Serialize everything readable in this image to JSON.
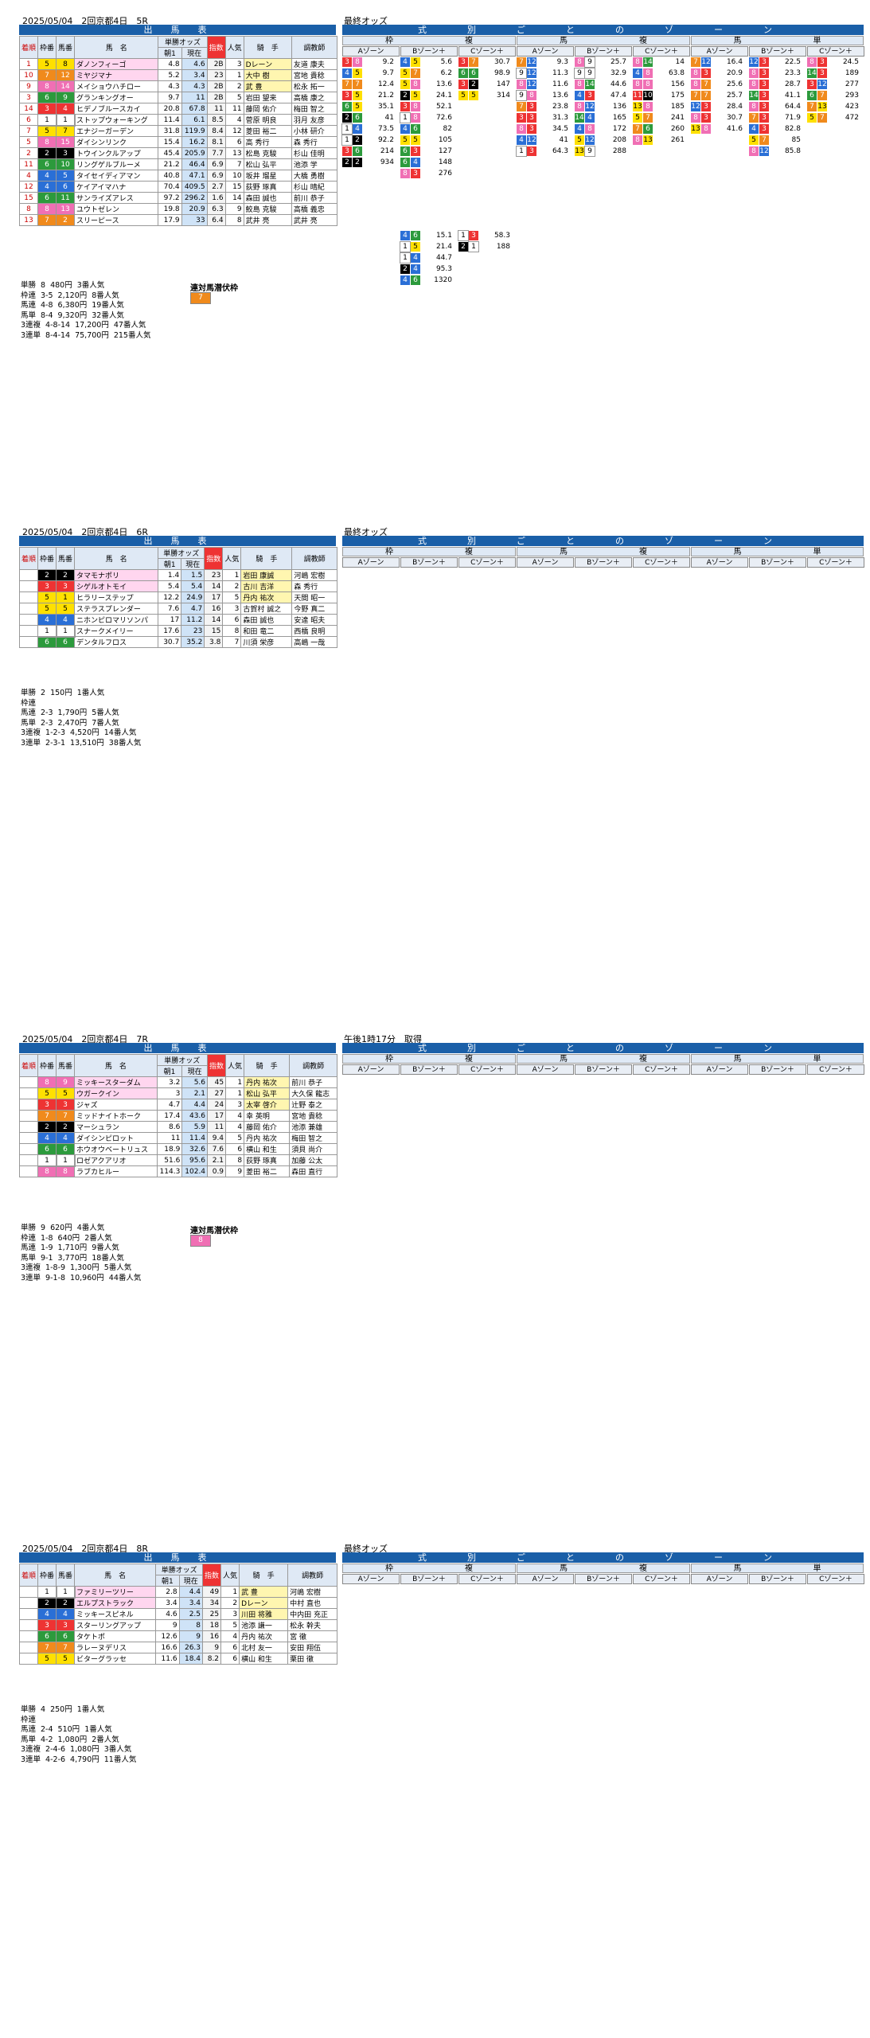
{
  "races": [
    {
      "date": "2025/05/04",
      "place": "2回京都4日",
      "race": "5R",
      "table_title": "出　馬　表",
      "odds_title": "最終オッズ",
      "zone_title": "式　別　ご　と　の　ゾ　ー　ン",
      "col_headers": [
        "着順",
        "枠番",
        "馬番",
        "馬　名",
        "単勝オッズ",
        "朝1",
        "現在",
        "人気",
        "騎　手",
        "調教師"
      ],
      "entries": [
        [
          "1",
          "5",
          "8",
          "ダノンフィーゴ",
          "4.8",
          "4.6",
          "2B",
          "3",
          "Dレーン",
          "友道 康夫"
        ],
        [
          "10",
          "7",
          "12",
          "ミヤジマナ",
          "5.2",
          "3.4",
          "23",
          "1",
          "大中 樹",
          "宮地 貴稔"
        ],
        [
          "9",
          "8",
          "14",
          "メイショウハチロー",
          "4.3",
          "4.3",
          "2B",
          "2",
          "武 豊",
          "松永 拓一"
        ],
        [
          "3",
          "6",
          "9",
          "グランキングオー",
          "9.7",
          "11",
          "2B",
          "5",
          "岩田 望来",
          "高橋 康之"
        ],
        [
          "14",
          "3",
          "4",
          "ヒデノブルースカイ",
          "20.8",
          "67.8",
          "11",
          "11",
          "藤岡 佑介",
          "梅田 智之"
        ],
        [
          "6",
          "1",
          "1",
          "ストップウォーキング",
          "11.4",
          "6.1",
          "8.5",
          "4",
          "菅原 明良",
          "羽月 友彦"
        ],
        [
          "7",
          "5",
          "7",
          "エナジーガーデン",
          "31.8",
          "119.9",
          "8.4",
          "12",
          "菱田 裕二",
          "小林 研介"
        ],
        [
          "5",
          "8",
          "15",
          "ダイシンリンク",
          "15.4",
          "16.2",
          "8.1",
          "6",
          "高 秀行",
          "森 秀行"
        ],
        [
          "2",
          "2",
          "3",
          "トウインクルアップ",
          "45.4",
          "205.9",
          "7.7",
          "13",
          "松島 克駿",
          "杉山 佳明"
        ],
        [
          "11",
          "6",
          "10",
          "リングゲルブルーメ",
          "21.2",
          "46.4",
          "6.9",
          "7",
          "松山 弘平",
          "池添 学"
        ],
        [
          "4",
          "4",
          "5",
          "タイセイディアマン",
          "40.8",
          "47.1",
          "6.9",
          "10",
          "坂井 瑠星",
          "大橋 勇樹"
        ],
        [
          "12",
          "4",
          "6",
          "ケイアイマハナ",
          "70.4",
          "409.5",
          "2.7",
          "15",
          "荻野 琢真",
          "杉山 晴紀"
        ],
        [
          "15",
          "6",
          "11",
          "サンライズアレス",
          "97.2",
          "296.2",
          "1.6",
          "14",
          "森田 誠也",
          "前川 恭子"
        ],
        [
          "8",
          "8",
          "13",
          "ユウトゼレン",
          "19.8",
          "20.9",
          "6.3",
          "9",
          "鮫島 克駿",
          "高橋 義忠"
        ],
        [
          "13",
          "7",
          "2",
          "スリーピース",
          "17.9",
          "33",
          "6.4",
          "8",
          "武井 亮",
          "武井 亮"
        ]
      ],
      "payouts": [
        [
          "単勝",
          "8",
          "480円",
          "3番人気"
        ],
        [
          "枠連",
          "3-5",
          "2,120円",
          "8番人気"
        ],
        [
          "馬連",
          "4-8",
          "6,380円",
          "19番人気"
        ],
        [
          "馬単",
          "8-4",
          "9,320円",
          "32番人気"
        ],
        [
          "3連複",
          "4-8-14",
          "17,200円",
          "47番人気"
        ],
        [
          "3連単",
          "8-4-14",
          "75,700円",
          "215番人気"
        ]
      ],
      "special_label": "連対馬潜伏枠",
      "special_value": "7",
      "categories": [
        "枠",
        "複",
        "馬",
        "複",
        "馬",
        "単"
      ],
      "zones": [
        "Aゾーン",
        "Bゾーン＋",
        "Cゾーン＋",
        "Aゾーン",
        "Bゾーン＋",
        "Cゾーン＋",
        "Aゾーン",
        "Bゾーン＋",
        "Cゾーン＋"
      ]
    },
    {
      "date": "2025/05/04",
      "place": "2回京都4日",
      "race": "6R",
      "table_title": "出　馬　表",
      "odds_title": "最終オッズ",
      "zone_title": "式　別　ご　と　の　ゾ　ー　ン",
      "entries": [
        [
          "",
          "2",
          "2",
          "タマモナポリ",
          "1.4",
          "1.5",
          "23",
          "1",
          "岩田 康誠",
          "河嶋 宏樹"
        ],
        [
          "",
          "3",
          "3",
          "シゲルオトモイ",
          "5.4",
          "5.4",
          "14",
          "2",
          "古川 吉洋",
          "森 秀行"
        ],
        [
          "",
          "5",
          "1",
          "ヒラリーステップ",
          "12.2",
          "24.9",
          "17",
          "5",
          "丹内 祐次",
          "天間 昭一"
        ],
        [
          "",
          "5",
          "5",
          "ステラスプレンダー",
          "7.6",
          "4.7",
          "16",
          "3",
          "古賀村 誠之",
          "今野 真二"
        ],
        [
          "",
          "4",
          "4",
          "ニホンピロマリソンパ",
          "17",
          "11.2",
          "14",
          "6",
          "森田 誠也",
          "安達 昭夫"
        ],
        [
          "",
          "1",
          "1",
          "スナークメイリー",
          "17.6",
          "23",
          "15",
          "8",
          "和田 竜二",
          "西橋 良明"
        ],
        [
          "",
          "6",
          "6",
          "デンタルフロス",
          "30.7",
          "35.2",
          "3.8",
          "7",
          "川須 栄彦",
          "高嶋 一哉"
        ]
      ],
      "payouts": [
        [
          "単勝",
          "2",
          "150円",
          "1番人気"
        ],
        [
          "枠連",
          "",
          "",
          ""
        ],
        [
          "馬連",
          "2-3",
          "1,790円",
          "5番人気"
        ],
        [
          "馬単",
          "2-3",
          "2,470円",
          "7番人気"
        ],
        [
          "3連複",
          "1-2-3",
          "4,520円",
          "14番人気"
        ],
        [
          "3連単",
          "2-3-1",
          "13,510円",
          "38番人気"
        ]
      ],
      "zones": [
        "Aゾーン",
        "Bゾーン＋",
        "Cゾーン＋",
        "Aゾーン",
        "Bゾーン＋",
        "Cゾーン＋",
        "Aゾーン",
        "Bゾーン＋",
        "Cゾーン＋"
      ]
    },
    {
      "date": "2025/05/04",
      "place": "2回京都4日",
      "race": "7R",
      "table_title": "出　馬　表",
      "odds_title": "午後1時17分　取得",
      "zone_title": "式　別　ご　と　の　ゾ　ー　ン",
      "entries": [
        [
          "",
          "8",
          "9",
          "ミッキースターダム",
          "3.2",
          "5.6",
          "45",
          "1",
          "丹内 祐次",
          "前川 恭子"
        ],
        [
          "",
          "5",
          "5",
          "ウガークイン",
          "3",
          "2.1",
          "27",
          "1",
          "松山 弘平",
          "大久保 龍志"
        ],
        [
          "",
          "3",
          "3",
          "ジャズ",
          "4.7",
          "4.4",
          "24",
          "3",
          "太宰 啓介",
          "辻野 泰之"
        ],
        [
          "",
          "7",
          "7",
          "ミッドナイトホーク",
          "17.4",
          "43.6",
          "17",
          "4",
          "幸 英明",
          "宮地 貴稔"
        ],
        [
          "",
          "2",
          "2",
          "マーシュラン",
          "8.6",
          "5.9",
          "11",
          "4",
          "藤岡 佑介",
          "池添 兼雄"
        ],
        [
          "",
          "4",
          "4",
          "ダイシンピロット",
          "11",
          "11.4",
          "9.4",
          "5",
          "丹内 祐次",
          "梅田 智之"
        ],
        [
          "",
          "6",
          "6",
          "ホウオウベートリュス",
          "18.9",
          "32.6",
          "7.6",
          "6",
          "横山 和生",
          "須貝 尚介"
        ],
        [
          "",
          "1",
          "1",
          "ロゼアクアリオ",
          "51.6",
          "95.6",
          "2.1",
          "8",
          "荻野 琢真",
          "加藤 公太"
        ],
        [
          "",
          "8",
          "8",
          "ラブカヒルー",
          "114.3",
          "102.4",
          "0.9",
          "9",
          "菱田 裕二",
          "森田 直行"
        ]
      ],
      "payouts": [
        [
          "単勝",
          "9",
          "620円",
          "4番人気"
        ],
        [
          "枠連",
          "1-8",
          "640円",
          "2番人気"
        ],
        [
          "馬連",
          "1-9",
          "1,710円",
          "9番人気"
        ],
        [
          "馬単",
          "9-1",
          "3,770円",
          "18番人気"
        ],
        [
          "3連複",
          "1-8-9",
          "1,300円",
          "5番人気"
        ],
        [
          "3連単",
          "9-1-8",
          "10,960円",
          "44番人気"
        ]
      ],
      "special_label": "連対馬潜伏枠",
      "special_value": "8",
      "zones": [
        "Aゾーン",
        "Bゾーン＋",
        "Cゾーン＋",
        "Aゾーン",
        "Bゾーン＋",
        "Cゾーン＋",
        "Aゾーン",
        "Bゾーン＋",
        "Cゾーン＋"
      ]
    },
    {
      "date": "2025/05/04",
      "place": "2回京都4日",
      "race": "8R",
      "table_title": "出　馬　表",
      "odds_title": "最終オッズ",
      "zone_title": "式　別　ご　と　の　ゾ　ー　ン",
      "entries": [
        [
          "",
          "1",
          "1",
          "ファミリーツリー",
          "2.8",
          "4.4",
          "49",
          "1",
          "武 豊",
          "河嶋 宏樹"
        ],
        [
          "",
          "2",
          "2",
          "エルプストラック",
          "3.4",
          "3.4",
          "34",
          "2",
          "Dレーン",
          "中村 直也"
        ],
        [
          "",
          "4",
          "4",
          "ミッキースピネル",
          "4.6",
          "2.5",
          "25",
          "3",
          "川田 将雅",
          "中内田 充正"
        ],
        [
          "",
          "3",
          "3",
          "スターリングアップ",
          "9",
          "8",
          "18",
          "5",
          "池添 謙一",
          "松永 幹夫"
        ],
        [
          "",
          "6",
          "6",
          "タケトポ",
          "12.6",
          "9",
          "16",
          "4",
          "丹内 祐次",
          "宮 徹"
        ],
        [
          "",
          "7",
          "7",
          "ラレーヌデリス",
          "16.6",
          "26.3",
          "9",
          "6",
          "北村 友一",
          "安田 翔伍"
        ],
        [
          "",
          "5",
          "5",
          "ビターグラッセ",
          "11.6",
          "18.4",
          "8.2",
          "6",
          "横山 和生",
          "栗田 徹"
        ]
      ],
      "payouts": [
        [
          "単勝",
          "4",
          "250円",
          "1番人気"
        ],
        [
          "枠連",
          "",
          "",
          ""
        ],
        [
          "馬連",
          "2-4",
          "510円",
          "1番人気"
        ],
        [
          "馬単",
          "4-2",
          "1,080円",
          "2番人気"
        ],
        [
          "3連複",
          "2-4-6",
          "1,080円",
          "3番人気"
        ],
        [
          "3連単",
          "4-2-6",
          "4,790円",
          "11番人気"
        ]
      ],
      "zones": [
        "Aゾーン",
        "Bゾーン＋",
        "Cゾーン＋",
        "Aゾーン",
        "Bゾーン＋",
        "Cゾーン＋",
        "Aゾーン",
        "Bゾーン＋",
        "Cゾーン＋"
      ]
    }
  ],
  "race5_odds": {
    "waku_A": [
      [
        "3",
        "8",
        "9.2"
      ],
      [
        "4",
        "5",
        "9.7"
      ],
      [
        "7",
        "7",
        "12.4"
      ],
      [
        "3",
        "5",
        "21.2"
      ],
      [
        "6",
        "5",
        "35.1"
      ],
      [
        "2",
        "6",
        "41"
      ],
      [
        "1",
        "4",
        "73.5"
      ],
      [
        "1",
        "2",
        "92.2"
      ],
      [
        "3",
        "6",
        "214"
      ],
      [
        "2",
        "2",
        "934"
      ]
    ],
    "waku_B": [
      [
        "4",
        "5",
        "5.6"
      ],
      [
        "5",
        "7",
        "6.2"
      ],
      [
        "5",
        "8",
        "13.6"
      ],
      [
        "2",
        "5",
        "24.1"
      ],
      [
        "3",
        "8",
        "52.1"
      ],
      [
        "1",
        "8",
        "72.6"
      ],
      [
        "4",
        "6",
        "82"
      ],
      [
        "5",
        "5",
        "105"
      ],
      [
        "6",
        "3",
        "127"
      ],
      [
        "6",
        "4",
        "148"
      ],
      [
        "8",
        "3",
        "276"
      ]
    ],
    "waku_C": [
      [
        "3",
        "7",
        "30.7"
      ],
      [
        "6",
        "6",
        "98.9"
      ],
      [
        "3",
        "2",
        "147"
      ],
      [
        "5",
        "5",
        "314"
      ]
    ],
    "waku_Dminus": [
      [
        "4",
        "6",
        "15.1"
      ],
      [
        "1",
        "5",
        "21.4"
      ],
      [
        "1",
        "4",
        "44.7"
      ],
      [
        "2",
        "4",
        "95.3"
      ],
      [
        "4",
        "6",
        "1320"
      ]
    ],
    "waku_C2": [
      [
        "1",
        "3",
        "58.3"
      ],
      [
        "2",
        "1",
        "188"
      ]
    ],
    "fuku_A": [
      [
        "7",
        "12",
        "9.3"
      ],
      [
        "9",
        "12",
        "11.3"
      ],
      [
        "8",
        "12",
        "11.6"
      ],
      [
        "9",
        "8",
        "13.6"
      ],
      [
        "7",
        "3",
        "23.8"
      ],
      [
        "3",
        "3",
        "31.3"
      ],
      [
        "8",
        "3",
        "34.5"
      ],
      [
        "4",
        "12",
        "41"
      ],
      [
        "1",
        "3",
        "64.3"
      ]
    ],
    "fuku_B": [
      [
        "8",
        "9",
        "25.7"
      ],
      [
        "9",
        "9",
        "32.9"
      ],
      [
        "8",
        "14",
        "44.6"
      ],
      [
        "4",
        "3",
        "47.4"
      ],
      [
        "8",
        "12",
        "136"
      ],
      [
        "14",
        "4",
        "165"
      ],
      [
        "4",
        "8",
        "172"
      ],
      [
        "5",
        "12",
        "208"
      ],
      [
        "13",
        "9",
        "288"
      ]
    ],
    "fuku_C": [
      [
        "8",
        "14",
        "14"
      ],
      [
        "4",
        "8",
        "63.8"
      ],
      [
        "8",
        "8",
        "156"
      ],
      [
        "11",
        "10",
        "175"
      ],
      [
        "13",
        "8",
        "185"
      ],
      [
        "5",
        "7",
        "241"
      ],
      [
        "7",
        "6",
        "260"
      ],
      [
        "8",
        "13",
        "261"
      ]
    ],
    "tan_A": [
      [
        "7",
        "12",
        "16.4"
      ],
      [
        "8",
        "3",
        "20.9"
      ],
      [
        "8",
        "7",
        "25.6"
      ],
      [
        "7",
        "7",
        "25.7"
      ],
      [
        "12",
        "3",
        "28.4"
      ],
      [
        "8",
        "3",
        "30.7"
      ],
      [
        "13",
        "8",
        "41.6"
      ]
    ],
    "tan_B": [
      [
        "12",
        "3",
        "22.5"
      ],
      [
        "8",
        "3",
        "23.3"
      ],
      [
        "8",
        "3",
        "28.7"
      ],
      [
        "14",
        "3",
        "41.1"
      ],
      [
        "8",
        "3",
        "64.4"
      ],
      [
        "7",
        "3",
        "71.9"
      ],
      [
        "4",
        "3",
        "82.8"
      ],
      [
        "5",
        "7",
        "85"
      ],
      [
        "8",
        "12",
        "85.8"
      ]
    ],
    "tan_C": [
      [
        "8",
        "3",
        "24.5"
      ],
      [
        "14",
        "3",
        "189"
      ],
      [
        "3",
        "12",
        "277"
      ],
      [
        "6",
        "7",
        "293"
      ],
      [
        "7",
        "13",
        "423"
      ],
      [
        "5",
        "7",
        "472"
      ]
    ]
  }
}
